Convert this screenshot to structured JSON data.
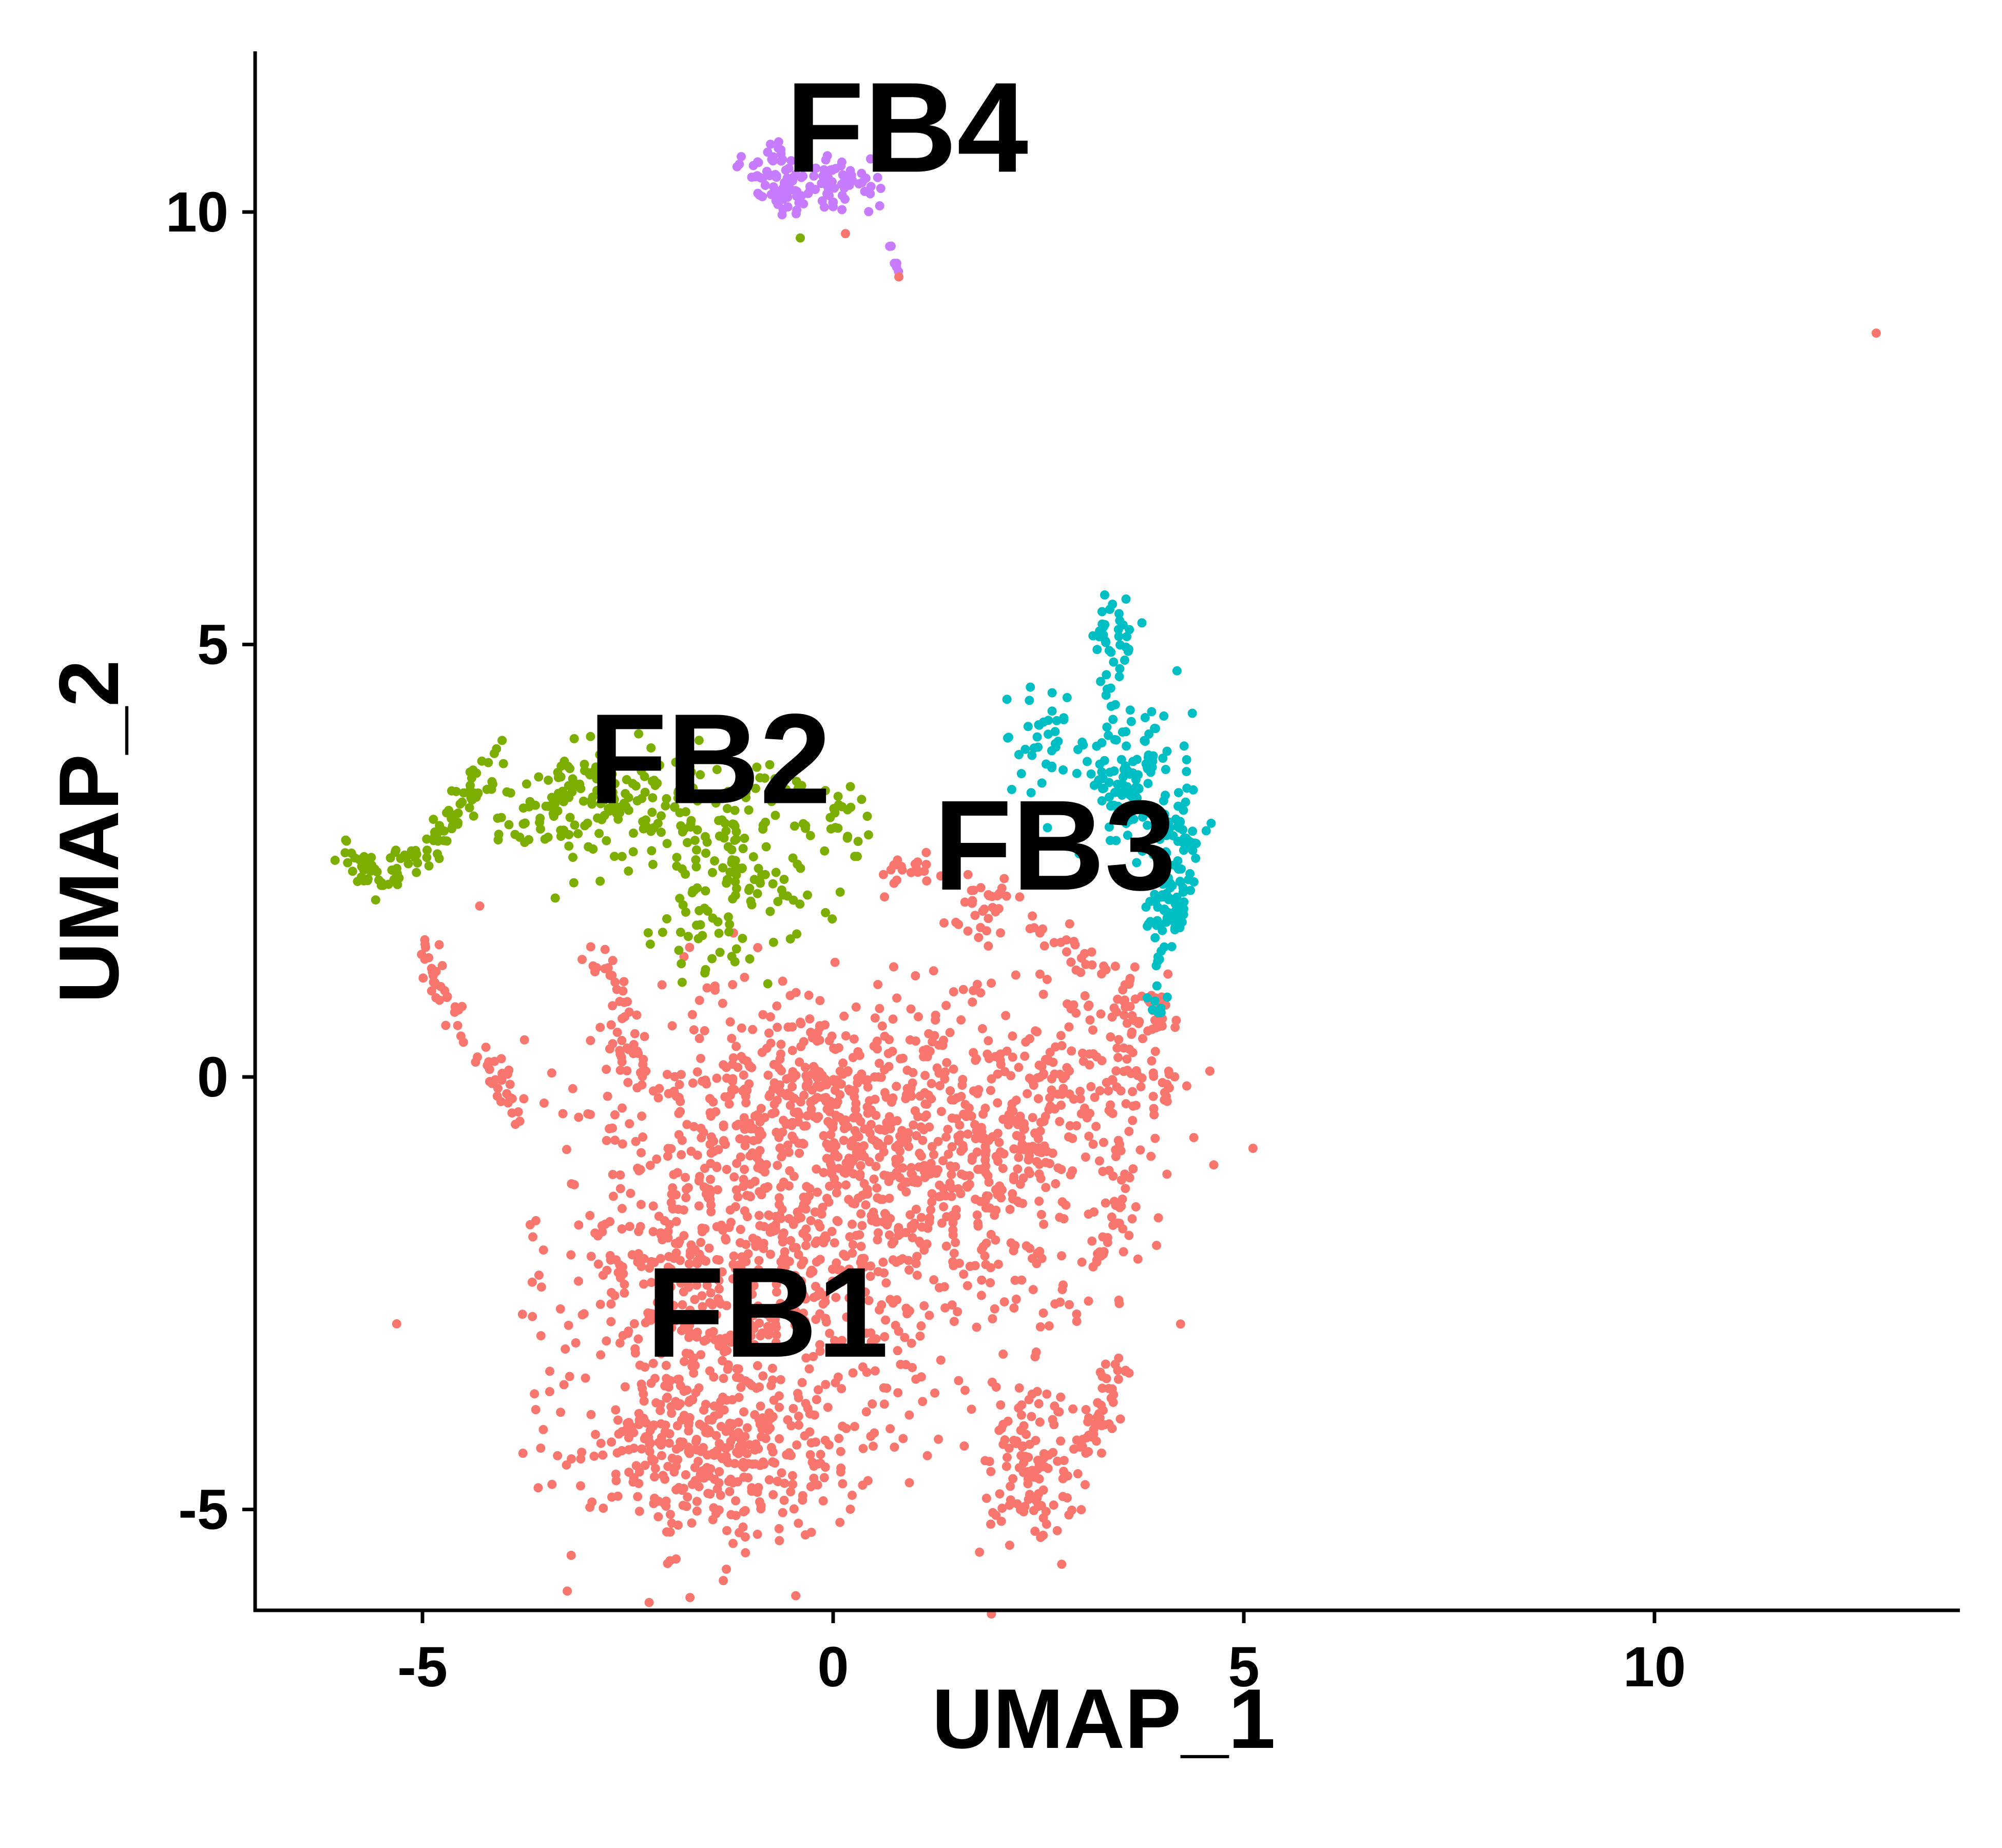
{
  "chart_data": {
    "type": "scatter",
    "title": "",
    "xlabel": "UMAP_1",
    "ylabel": "UMAP_2",
    "xlim": [
      -7,
      13.8
    ],
    "ylim": [
      -6.3,
      11.7
    ],
    "x_ticks": [
      -5,
      0,
      5,
      10
    ],
    "y_ticks": [
      -5,
      0,
      5,
      10
    ],
    "x_tick_labels": [
      "-5",
      "0",
      "5",
      "10"
    ],
    "y_tick_labels": [
      "-5",
      "0",
      "5",
      "10"
    ],
    "grid": false,
    "legend": "none",
    "clusters": [
      {
        "name": "FB1",
        "color": "#F8766D",
        "center": [
          -0.8,
          -2.7
        ],
        "approx_points": 2600,
        "extent_x": [
          -5.0,
          4.5
        ],
        "extent_y": [
          -5.3,
          2.4
        ]
      },
      {
        "name": "FB2",
        "color": "#7CAE00",
        "center": [
          -1.5,
          3.7
        ],
        "approx_points": 450,
        "extent_x": [
          -6.1,
          0.3
        ],
        "extent_y": [
          1.0,
          3.9
        ]
      },
      {
        "name": "FB3",
        "color": "#00BFC4",
        "center": [
          2.7,
          2.7
        ],
        "approx_points": 380,
        "extent_x": [
          2.0,
          4.4
        ],
        "extent_y": [
          0.7,
          5.4
        ]
      },
      {
        "name": "FB4",
        "color": "#C77CFF",
        "center": [
          0.9,
          11.0
        ],
        "approx_points": 150,
        "extent_x": [
          -1.0,
          0.8
        ],
        "extent_y": [
          9.3,
          11.0
        ]
      }
    ],
    "outlier_points": [
      {
        "x": 12.7,
        "y": 8.6,
        "cluster": "FB1"
      },
      {
        "x": 0.8,
        "y": 9.25,
        "cluster": "FB1"
      },
      {
        "x": 0.15,
        "y": 9.75,
        "cluster": "FB1"
      }
    ]
  }
}
